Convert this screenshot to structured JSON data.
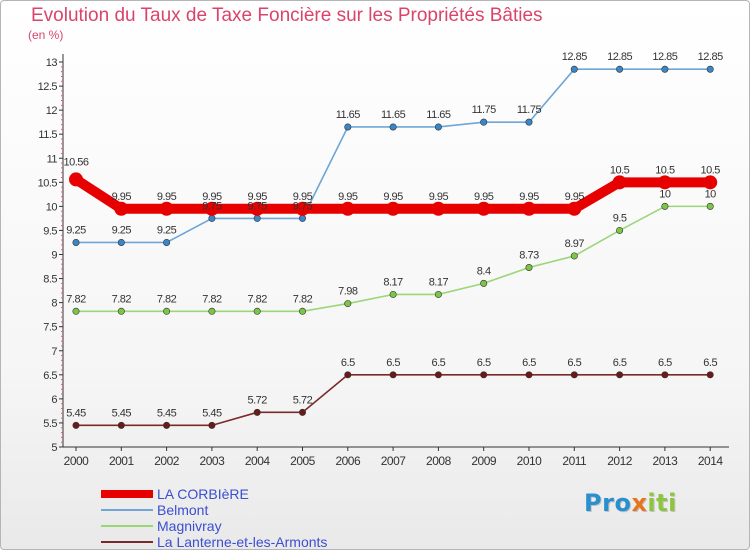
{
  "title": "Evolution du Taux de Taxe Foncière sur les Propriétés Bâties",
  "unit_label": "(en %)",
  "logo": {
    "text": "Proxiti",
    "letters": [
      "P",
      "r",
      "o",
      "x",
      "i",
      "t",
      "i"
    ],
    "colors": [
      "#2a8fcf",
      "#2a8fcf",
      "#2a8fcf",
      "#e8741d",
      "#8cc63f",
      "#8cc63f",
      "#8cc63f"
    ]
  },
  "chart_data": {
    "type": "line",
    "title": "Evolution du Taux de Taxe Foncière sur les Propriétés Bâties",
    "ylabel": "(en %)",
    "xlabel": "",
    "x": [
      "2000",
      "2001",
      "2002",
      "2003",
      "2004",
      "2005",
      "2006",
      "2007",
      "2008",
      "2009",
      "2010",
      "2011",
      "2012",
      "2013",
      "2014"
    ],
    "ylim": [
      5,
      13
    ],
    "yticks": [
      "5",
      "5.5",
      "6",
      "6.5",
      "7",
      "7.5",
      "8",
      "8.5",
      "9",
      "9.5",
      "10",
      "10.5",
      "11",
      "11.5",
      "12",
      "12.5",
      "13"
    ],
    "grid": false,
    "legend_position": "bottom-left",
    "series": [
      {
        "name": "LA CORBIèRE",
        "color": "#e60000",
        "emphasis": true,
        "values": [
          10.56,
          9.95,
          9.95,
          9.95,
          9.95,
          9.95,
          9.95,
          9.95,
          9.95,
          9.95,
          9.95,
          9.95,
          10.5,
          10.5,
          10.5
        ],
        "labels": [
          "10.56",
          "9.95",
          "9.95",
          "9.95",
          "9.95",
          "9.95",
          "9.95",
          "9.95",
          "9.95",
          "9.95",
          "9.95",
          "9.95",
          "10.5",
          "10.5",
          "10.5"
        ]
      },
      {
        "name": "Belmont",
        "color": "#6fa6d6",
        "marker": "#3a86c8",
        "values": [
          9.25,
          9.25,
          9.25,
          9.75,
          9.75,
          9.75,
          11.65,
          11.65,
          11.65,
          11.75,
          11.75,
          12.85,
          12.85,
          12.85,
          12.85
        ],
        "labels": [
          "9.25",
          "9.25",
          "9.25",
          "9.75",
          "9.75",
          "9.75",
          "11.65",
          "11.65",
          "11.65",
          "11.75",
          "11.75",
          "12.85",
          "12.85",
          "12.85",
          "12.85"
        ]
      },
      {
        "name": "Magnivray",
        "color": "#9cd67a",
        "marker": "#7cc646",
        "values": [
          7.82,
          7.82,
          7.82,
          7.82,
          7.82,
          7.82,
          7.98,
          8.17,
          8.17,
          8.4,
          8.73,
          8.97,
          9.5,
          10,
          10
        ],
        "labels": [
          "7.82",
          "7.82",
          "7.82",
          "7.82",
          "7.82",
          "7.82",
          "7.98",
          "8.17",
          "8.17",
          "8.4",
          "8.73",
          "8.97",
          "9.5",
          "10",
          "10"
        ]
      },
      {
        "name": "La Lanterne-et-les-Armonts",
        "color": "#7a2a2a",
        "marker": "#6a1a1a",
        "values": [
          5.45,
          5.45,
          5.45,
          5.45,
          5.72,
          5.72,
          6.5,
          6.5,
          6.5,
          6.5,
          6.5,
          6.5,
          6.5,
          6.5,
          6.5
        ],
        "labels": [
          "5.45",
          "5.45",
          "5.45",
          "5.45",
          "5.72",
          "5.72",
          "6.5",
          "6.5",
          "6.5",
          "6.5",
          "6.5",
          "6.5",
          "6.5",
          "6.5",
          "6.5"
        ]
      }
    ]
  }
}
